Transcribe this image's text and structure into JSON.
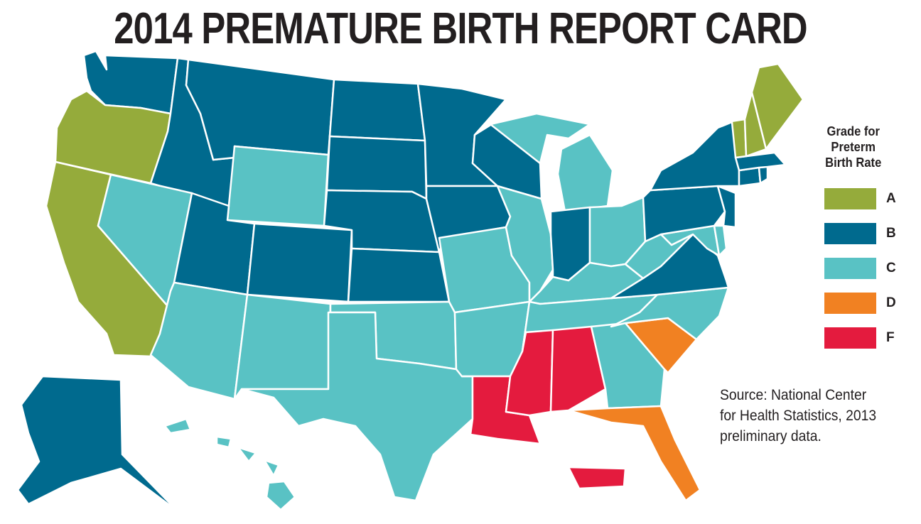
{
  "title": "2014 PREMATURE BIRTH REPORT CARD",
  "legend": {
    "title_lines": [
      "Grade for",
      "Preterm",
      "Birth Rate"
    ],
    "grades": [
      {
        "label": "A",
        "color": "#95ab3b"
      },
      {
        "label": "B",
        "color": "#006a8e"
      },
      {
        "label": "C",
        "color": "#59c2c4"
      },
      {
        "label": "D",
        "color": "#f18122"
      },
      {
        "label": "F",
        "color": "#e41b3e"
      }
    ]
  },
  "source_lines": [
    "Source: National Center",
    "for Health Statistics, 2013",
    "preliminary data."
  ],
  "states": [
    {
      "name": "Washington",
      "grade": "B"
    },
    {
      "name": "Oregon",
      "grade": "A"
    },
    {
      "name": "California",
      "grade": "A"
    },
    {
      "name": "Idaho",
      "grade": "B"
    },
    {
      "name": "Nevada",
      "grade": "C"
    },
    {
      "name": "Montana",
      "grade": "B"
    },
    {
      "name": "Wyoming",
      "grade": "C"
    },
    {
      "name": "Utah",
      "grade": "B"
    },
    {
      "name": "Arizona",
      "grade": "C"
    },
    {
      "name": "Colorado",
      "grade": "B"
    },
    {
      "name": "New Mexico",
      "grade": "C"
    },
    {
      "name": "North Dakota",
      "grade": "B"
    },
    {
      "name": "South Dakota",
      "grade": "B"
    },
    {
      "name": "Nebraska",
      "grade": "B"
    },
    {
      "name": "Kansas",
      "grade": "B"
    },
    {
      "name": "Oklahoma",
      "grade": "C"
    },
    {
      "name": "Texas",
      "grade": "C"
    },
    {
      "name": "Minnesota",
      "grade": "B"
    },
    {
      "name": "Iowa",
      "grade": "B"
    },
    {
      "name": "Missouri",
      "grade": "C"
    },
    {
      "name": "Arkansas",
      "grade": "C"
    },
    {
      "name": "Louisiana",
      "grade": "F"
    },
    {
      "name": "Wisconsin",
      "grade": "B"
    },
    {
      "name": "Illinois",
      "grade": "C"
    },
    {
      "name": "Michigan",
      "grade": "C"
    },
    {
      "name": "Indiana",
      "grade": "B"
    },
    {
      "name": "Ohio",
      "grade": "C"
    },
    {
      "name": "Kentucky",
      "grade": "C"
    },
    {
      "name": "Tennessee",
      "grade": "C"
    },
    {
      "name": "Mississippi",
      "grade": "F"
    },
    {
      "name": "Alabama",
      "grade": "F"
    },
    {
      "name": "Georgia",
      "grade": "C"
    },
    {
      "name": "Florida",
      "grade": "D"
    },
    {
      "name": "South Carolina",
      "grade": "D"
    },
    {
      "name": "North Carolina",
      "grade": "C"
    },
    {
      "name": "Virginia",
      "grade": "B"
    },
    {
      "name": "West Virginia",
      "grade": "C"
    },
    {
      "name": "Maryland",
      "grade": "C"
    },
    {
      "name": "Delaware",
      "grade": "C"
    },
    {
      "name": "Pennsylvania",
      "grade": "B"
    },
    {
      "name": "New Jersey",
      "grade": "B"
    },
    {
      "name": "New York",
      "grade": "B"
    },
    {
      "name": "Connecticut",
      "grade": "B"
    },
    {
      "name": "Rhode Island",
      "grade": "B"
    },
    {
      "name": "Massachusetts",
      "grade": "B"
    },
    {
      "name": "Vermont",
      "grade": "A"
    },
    {
      "name": "New Hampshire",
      "grade": "A"
    },
    {
      "name": "Maine",
      "grade": "A"
    },
    {
      "name": "Alaska",
      "grade": "B"
    },
    {
      "name": "Hawaii",
      "grade": "C"
    },
    {
      "name": "Puerto Rico",
      "grade": "F"
    }
  ]
}
